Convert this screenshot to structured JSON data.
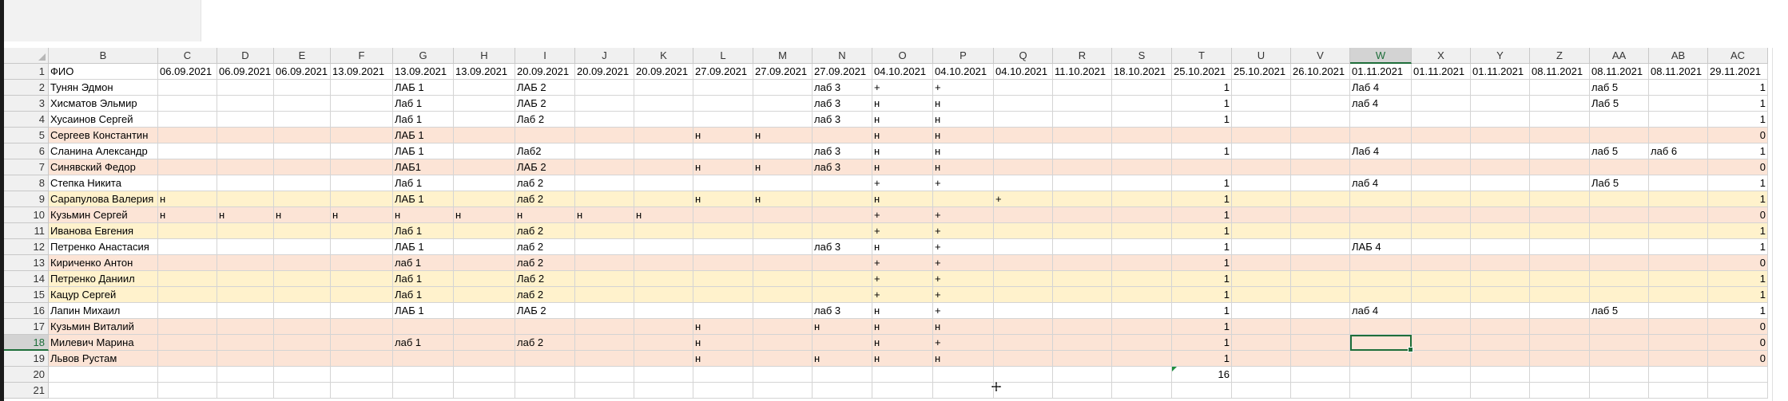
{
  "columns": [
    "B",
    "C",
    "D",
    "E",
    "F",
    "G",
    "H",
    "I",
    "J",
    "K",
    "L",
    "M",
    "N",
    "O",
    "P",
    "Q",
    "R",
    "S",
    "T",
    "U",
    "V",
    "W",
    "X",
    "Y",
    "Z",
    "AA",
    "AB",
    "AC"
  ],
  "selected_column": "W",
  "selected_row": "18",
  "rows": [
    {
      "n": "1",
      "style": "",
      "cells": [
        "ФИО",
        "06.09.2021",
        "06.09.2021",
        "06.09.2021",
        "13.09.2021",
        "13.09.2021",
        "13.09.2021",
        "20.09.2021",
        "20.09.2021",
        "20.09.2021",
        "27.09.2021",
        "27.09.2021",
        "27.09.2021",
        "04.10.2021",
        "04.10.2021",
        "04.10.2021",
        "11.10.2021",
        "18.10.2021",
        "25.10.2021",
        "25.10.2021",
        "26.10.2021",
        "01.11.2021",
        "01.11.2021",
        "01.11.2021",
        "08.11.2021",
        "08.11.2021",
        "08.11.2021",
        "29.11.2021"
      ]
    },
    {
      "n": "2",
      "style": "",
      "cells": [
        "Тунян Эдмон",
        "",
        "",
        "",
        "",
        "ЛАБ 1",
        "",
        "ЛАБ 2",
        "",
        "",
        "",
        "",
        "лаб 3",
        "+",
        "+",
        "",
        "",
        "",
        "1",
        "",
        "",
        "Лаб 4",
        "",
        "",
        "",
        "лаб 5",
        "",
        "1"
      ]
    },
    {
      "n": "3",
      "style": "",
      "cells": [
        "Хисматов Эльмир",
        "",
        "",
        "",
        "",
        "Лаб 1",
        "",
        "ЛАБ 2",
        "",
        "",
        "",
        "",
        "лаб 3",
        "н",
        "н",
        "",
        "",
        "",
        "1",
        "",
        "",
        "лаб 4",
        "",
        "",
        "",
        "Лаб 5",
        "",
        "1"
      ]
    },
    {
      "n": "4",
      "style": "",
      "cells": [
        "Хусаинов Сергей",
        "",
        "",
        "",
        "",
        "Лаб 1",
        "",
        "Лаб 2",
        "",
        "",
        "",
        "",
        "лаб 3",
        "н",
        "н",
        "",
        "",
        "",
        "1",
        "",
        "",
        "",
        "",
        "",
        "",
        "",
        "",
        "1"
      ]
    },
    {
      "n": "5",
      "style": "pink",
      "cells": [
        "Сергеев Константин",
        "",
        "",
        "",
        "",
        "ЛАБ 1",
        "",
        "",
        "",
        "",
        "н",
        "н",
        "",
        "н",
        "н",
        "",
        "",
        "",
        "",
        "",
        "",
        "",
        "",
        "",
        "",
        "",
        "",
        "0"
      ]
    },
    {
      "n": "6",
      "style": "",
      "cells": [
        "Сланина Александр",
        "",
        "",
        "",
        "",
        "ЛАБ 1",
        "",
        "Лаб2",
        "",
        "",
        "",
        "",
        "лаб 3",
        "н",
        "н",
        "",
        "",
        "",
        "1",
        "",
        "",
        "Лаб 4",
        "",
        "",
        "",
        "лаб 5",
        "лаб 6",
        "1"
      ]
    },
    {
      "n": "7",
      "style": "pink",
      "cells": [
        "Синявский Федор",
        "",
        "",
        "",
        "",
        "ЛАБ1",
        "",
        "ЛАБ 2",
        "",
        "",
        "н",
        "н",
        "лаб 3",
        "н",
        "н",
        "",
        "",
        "",
        "",
        "",
        "",
        "",
        "",
        "",
        "",
        "",
        "",
        "0"
      ]
    },
    {
      "n": "8",
      "style": "",
      "cells": [
        "Степка Никита",
        "",
        "",
        "",
        "",
        "Лаб 1",
        "",
        "лаб 2",
        "",
        "",
        "",
        "",
        "",
        "+",
        "+",
        "",
        "",
        "",
        "1",
        "",
        "",
        "лаб 4",
        "",
        "",
        "",
        "Лаб 5",
        "",
        "1"
      ]
    },
    {
      "n": "9",
      "style": "yellow",
      "cells": [
        "Сарапулова Валерия",
        "н",
        "",
        "",
        "",
        "ЛАБ 1",
        "",
        "лаб 2",
        "",
        "",
        "н",
        "н",
        "",
        "н",
        "",
        "+",
        "",
        "",
        "1",
        "",
        "",
        "",
        "",
        "",
        "",
        "",
        "",
        "1"
      ]
    },
    {
      "n": "10",
      "style": "pink",
      "cells": [
        "Кузьмин Сергей",
        "н",
        "н",
        "н",
        "н",
        "н",
        "н",
        "н",
        "н",
        "н",
        "",
        "",
        "",
        "+",
        "+",
        "",
        "",
        "",
        "1",
        "",
        "",
        "",
        "",
        "",
        "",
        "",
        "",
        "0"
      ]
    },
    {
      "n": "11",
      "style": "yellow",
      "cells": [
        "Иванова Евгения",
        "",
        "",
        "",
        "",
        "Лаб 1",
        "",
        "лаб 2",
        "",
        "",
        "",
        "",
        "",
        "+",
        "+",
        "",
        "",
        "",
        "1",
        "",
        "",
        "",
        "",
        "",
        "",
        "",
        "",
        "1"
      ]
    },
    {
      "n": "12",
      "style": "",
      "cells": [
        "Петренко Анастасия",
        "",
        "",
        "",
        "",
        "ЛАБ 1",
        "",
        "лаб 2",
        "",
        "",
        "",
        "",
        "лаб 3",
        "н",
        "+",
        "",
        "",
        "",
        "1",
        "",
        "",
        "ЛАБ 4",
        "",
        "",
        "",
        "",
        "",
        "1"
      ]
    },
    {
      "n": "13",
      "style": "pink",
      "cells": [
        "Кириченко Антон",
        "",
        "",
        "",
        "",
        "лаб 1",
        "",
        "лаб 2",
        "",
        "",
        "",
        "",
        "",
        "+",
        "+",
        "",
        "",
        "",
        "1",
        "",
        "",
        "",
        "",
        "",
        "",
        "",
        "",
        "0"
      ]
    },
    {
      "n": "14",
      "style": "yellow",
      "cells": [
        "Петренко Даниил",
        "",
        "",
        "",
        "",
        "Лаб 1",
        "",
        "Лаб 2",
        "",
        "",
        "",
        "",
        "",
        "+",
        "+",
        "",
        "",
        "",
        "1",
        "",
        "",
        "",
        "",
        "",
        "",
        "",
        "",
        "1"
      ]
    },
    {
      "n": "15",
      "style": "yellow",
      "cells": [
        "Кацур Сергей",
        "",
        "",
        "",
        "",
        "Лаб 1",
        "",
        "лаб 2",
        "",
        "",
        "",
        "",
        "",
        "+",
        "+",
        "",
        "",
        "",
        "1",
        "",
        "",
        "",
        "",
        "",
        "",
        "",
        "",
        "1"
      ]
    },
    {
      "n": "16",
      "style": "",
      "cells": [
        "Лапин Михаил",
        "",
        "",
        "",
        "",
        "ЛАБ 1",
        "",
        "ЛАБ 2",
        "",
        "",
        "",
        "",
        "лаб 3",
        "н",
        "+",
        "",
        "",
        "",
        "1",
        "",
        "",
        "лаб 4",
        "",
        "",
        "",
        "лаб 5",
        "",
        "1"
      ]
    },
    {
      "n": "17",
      "style": "pink",
      "cells": [
        "Кузьмин Виталий",
        "",
        "",
        "",
        "",
        "",
        "",
        "",
        "",
        "",
        "н",
        "",
        "н",
        "н",
        "н",
        "",
        "",
        "",
        "1",
        "",
        "",
        "",
        "",
        "",
        "",
        "",
        "",
        "0"
      ]
    },
    {
      "n": "18",
      "style": "pink",
      "cells": [
        "Милевич Марина",
        "",
        "",
        "",
        "",
        "лаб 1",
        "",
        "лаб 2",
        "",
        "",
        "н",
        "",
        "",
        "н",
        "+",
        "",
        "",
        "",
        "1",
        "",
        "",
        "",
        "",
        "",
        "",
        "",
        "",
        "0"
      ]
    },
    {
      "n": "19",
      "style": "pink",
      "cells": [
        "Львов Рустам",
        "",
        "",
        "",
        "",
        "",
        "",
        "",
        "",
        "",
        "н",
        "",
        "н",
        "н",
        "н",
        "",
        "",
        "",
        "1",
        "",
        "",
        "",
        "",
        "",
        "",
        "",
        "",
        "0"
      ]
    },
    {
      "n": "20",
      "style": "",
      "cells": [
        "",
        "",
        "",
        "",
        "",
        "",
        "",
        "",
        "",
        "",
        "",
        "",
        "",
        "",
        "",
        "",
        "",
        "",
        "16",
        "",
        "",
        "",
        "",
        "",
        "",
        "",
        "",
        ""
      ]
    },
    {
      "n": "21",
      "style": "",
      "cells": [
        "",
        "",
        "",
        "",
        "",
        "",
        "",
        "",
        "",
        "",
        "",
        "",
        "",
        "",
        "",
        "",
        "",
        "",
        "",
        "",
        "",
        "",
        "",
        "",
        "",
        "",
        "",
        ""
      ]
    }
  ]
}
